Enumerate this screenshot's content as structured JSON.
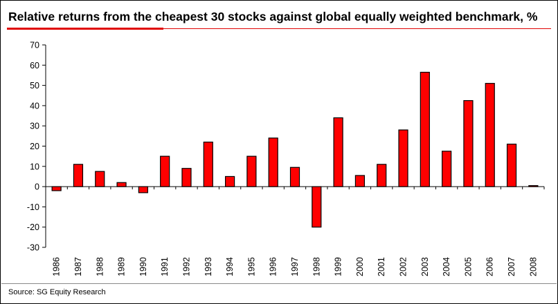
{
  "title": "Relative returns from the cheapest 30 stocks against global equally weighted benchmark, %",
  "source": "Source: SG Equity Research",
  "colors": {
    "bar": "#ff0000",
    "accent": "#e00000",
    "axis": "#000000"
  },
  "chart_data": {
    "type": "bar",
    "title": "Relative returns from the cheapest 30 stocks against global equally weighted benchmark, %",
    "xlabel": "",
    "ylabel": "",
    "ylim": [
      -30,
      70
    ],
    "yticks": [
      -30,
      -20,
      -10,
      0,
      10,
      20,
      30,
      40,
      50,
      60,
      70
    ],
    "grid": false,
    "legend": "none",
    "categories": [
      "1986",
      "1987",
      "1988",
      "1989",
      "1990",
      "1991",
      "1992",
      "1993",
      "1994",
      "1995",
      "1996",
      "1997",
      "1998",
      "1999",
      "2000",
      "2001",
      "2002",
      "2003",
      "2004",
      "2005",
      "2006",
      "2007",
      "2008"
    ],
    "values": [
      -2,
      11,
      7.5,
      2,
      -3,
      15,
      9,
      22,
      5,
      15,
      24,
      9.5,
      -20,
      34,
      5.5,
      11,
      28,
      56.5,
      17.5,
      42.5,
      51,
      21,
      0.5
    ]
  }
}
